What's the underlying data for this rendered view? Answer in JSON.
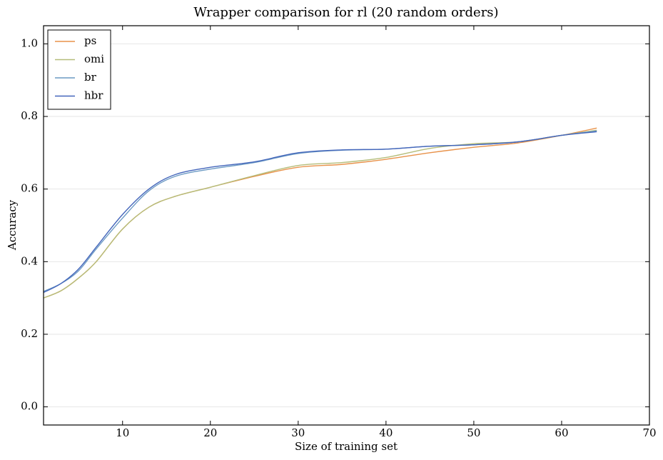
{
  "chart_data": {
    "type": "line",
    "title": "Wrapper comparison for rl (20 random orders)",
    "x_label": "Size of training set",
    "y_label": "Accuracy",
    "x": [
      1,
      3,
      5,
      7,
      10,
      13,
      16,
      20,
      25,
      30,
      35,
      40,
      45,
      50,
      55,
      60,
      64
    ],
    "series": [
      {
        "name": "ps",
        "color": "#e8924a",
        "values": [
          0.3,
          0.32,
          0.355,
          0.4,
          0.49,
          0.55,
          0.58,
          0.605,
          0.635,
          0.66,
          0.668,
          0.682,
          0.7,
          0.715,
          0.727,
          0.748,
          0.768
        ]
      },
      {
        "name": "omi",
        "color": "#b5bd7a",
        "values": [
          0.3,
          0.32,
          0.355,
          0.4,
          0.49,
          0.55,
          0.58,
          0.605,
          0.637,
          0.665,
          0.673,
          0.687,
          0.712,
          0.725,
          0.73,
          0.748,
          0.762
        ]
      },
      {
        "name": "br",
        "color": "#6c9ac4",
        "values": [
          0.318,
          0.34,
          0.375,
          0.435,
          0.52,
          0.595,
          0.635,
          0.655,
          0.673,
          0.698,
          0.707,
          0.71,
          0.718,
          0.722,
          0.73,
          0.748,
          0.76
        ]
      },
      {
        "name": "hbr",
        "color": "#4466bb",
        "values": [
          0.315,
          0.34,
          0.38,
          0.44,
          0.53,
          0.6,
          0.64,
          0.66,
          0.675,
          0.7,
          0.708,
          0.71,
          0.718,
          0.722,
          0.73,
          0.748,
          0.758
        ]
      }
    ],
    "xlim": [
      1,
      70
    ],
    "xticks": [
      10,
      20,
      30,
      40,
      50,
      60,
      70
    ],
    "ylim": [
      -0.05,
      1.05
    ],
    "yticks": [
      {
        "value": 0,
        "label": "0.0"
      },
      {
        "value": 0.2,
        "label": "0.2"
      },
      {
        "value": 0.4,
        "label": "0.4"
      },
      {
        "value": 0.6,
        "label": "0.6"
      },
      {
        "value": 0.8,
        "label": "0.8"
      },
      {
        "value": 1,
        "label": "1.0"
      }
    ],
    "grid": true,
    "legend": "upper left"
  }
}
